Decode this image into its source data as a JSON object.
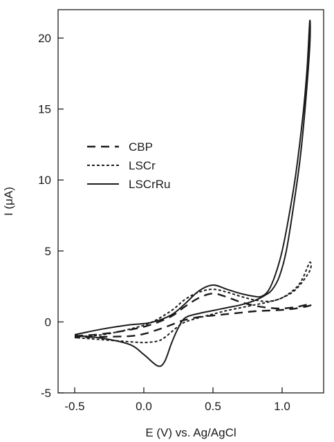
{
  "chart_data": {
    "type": "line",
    "title": "",
    "xlabel": "E (V) vs. Ag/AgCl",
    "ylabel": "I (μA)",
    "xlim": [
      -0.62,
      1.3
    ],
    "ylim": [
      -5,
      22
    ],
    "xticks": [
      -0.5,
      0.0,
      0.5,
      1.0
    ],
    "xtick_labels": [
      "-0.5",
      "0.0",
      "0.5",
      "1.0"
    ],
    "yticks": [
      -5,
      0,
      5,
      10,
      15,
      20
    ],
    "ytick_labels": [
      "-5",
      "0",
      "5",
      "10",
      "15",
      "20"
    ],
    "grid": false,
    "legend_position": "center-left",
    "series": [
      {
        "name": "CBP",
        "style": "dashed",
        "x": [
          -0.5,
          -0.3,
          -0.1,
          0.05,
          0.2,
          0.3,
          0.4,
          0.5,
          0.6,
          0.7,
          0.8,
          0.9,
          1.0,
          1.1,
          1.2,
          1.2,
          1.1,
          1.0,
          0.9,
          0.8,
          0.7,
          0.6,
          0.5,
          0.4,
          0.3,
          0.25,
          0.2,
          0.1,
          0.0,
          -0.1,
          -0.3,
          -0.5
        ],
        "y": [
          -1.0,
          -0.85,
          -0.55,
          -0.2,
          0.4,
          1.1,
          1.7,
          2.0,
          1.75,
          1.4,
          1.15,
          1.0,
          0.95,
          1.05,
          1.25,
          1.15,
          0.95,
          0.85,
          0.8,
          0.75,
          0.65,
          0.55,
          0.45,
          0.35,
          0.15,
          0.0,
          -0.2,
          -0.55,
          -0.85,
          -1.0,
          -1.05,
          -1.1
        ]
      },
      {
        "name": "LSCr",
        "style": "dotted",
        "x": [
          -0.5,
          -0.3,
          -0.1,
          0.05,
          0.2,
          0.3,
          0.4,
          0.5,
          0.6,
          0.7,
          0.8,
          0.9,
          1.0,
          1.1,
          1.15,
          1.2,
          1.2,
          1.1,
          1.0,
          0.9,
          0.8,
          0.7,
          0.6,
          0.5,
          0.4,
          0.3,
          0.25,
          0.2,
          0.15,
          0.1,
          0.0,
          -0.1,
          -0.3,
          -0.5
        ],
        "y": [
          -1.05,
          -0.9,
          -0.5,
          -0.05,
          0.8,
          1.6,
          2.1,
          2.3,
          2.1,
          1.8,
          1.55,
          1.45,
          1.7,
          2.4,
          3.1,
          4.2,
          3.6,
          2.3,
          1.7,
          1.4,
          1.2,
          1.0,
          0.8,
          0.55,
          0.3,
          0.0,
          -0.3,
          -0.7,
          -1.1,
          -1.35,
          -1.45,
          -1.4,
          -1.25,
          -1.1
        ]
      },
      {
        "name": "LSCrRu",
        "style": "solid",
        "x": [
          -0.5,
          -0.3,
          -0.1,
          0.05,
          0.2,
          0.3,
          0.4,
          0.5,
          0.6,
          0.7,
          0.8,
          0.85,
          0.9,
          0.95,
          1.0,
          1.05,
          1.1,
          1.15,
          1.18,
          1.2,
          1.2,
          1.17,
          1.13,
          1.08,
          1.03,
          0.98,
          0.93,
          0.88,
          0.8,
          0.7,
          0.6,
          0.5,
          0.4,
          0.3,
          0.25,
          0.2,
          0.15,
          0.1,
          0.0,
          -0.1,
          -0.3,
          -0.5
        ],
        "y": [
          -0.9,
          -0.5,
          -0.2,
          -0.05,
          0.5,
          1.3,
          2.2,
          2.6,
          2.3,
          2.0,
          1.8,
          1.8,
          2.2,
          3.3,
          5.0,
          7.5,
          10.5,
          14.5,
          17.8,
          21.2,
          19.5,
          15.5,
          11.5,
          8.0,
          5.0,
          3.2,
          2.3,
          1.9,
          1.5,
          1.2,
          1.0,
          0.8,
          0.6,
          0.3,
          -0.4,
          -1.5,
          -2.8,
          -3.1,
          -2.3,
          -1.6,
          -1.15,
          -0.95
        ]
      }
    ]
  }
}
